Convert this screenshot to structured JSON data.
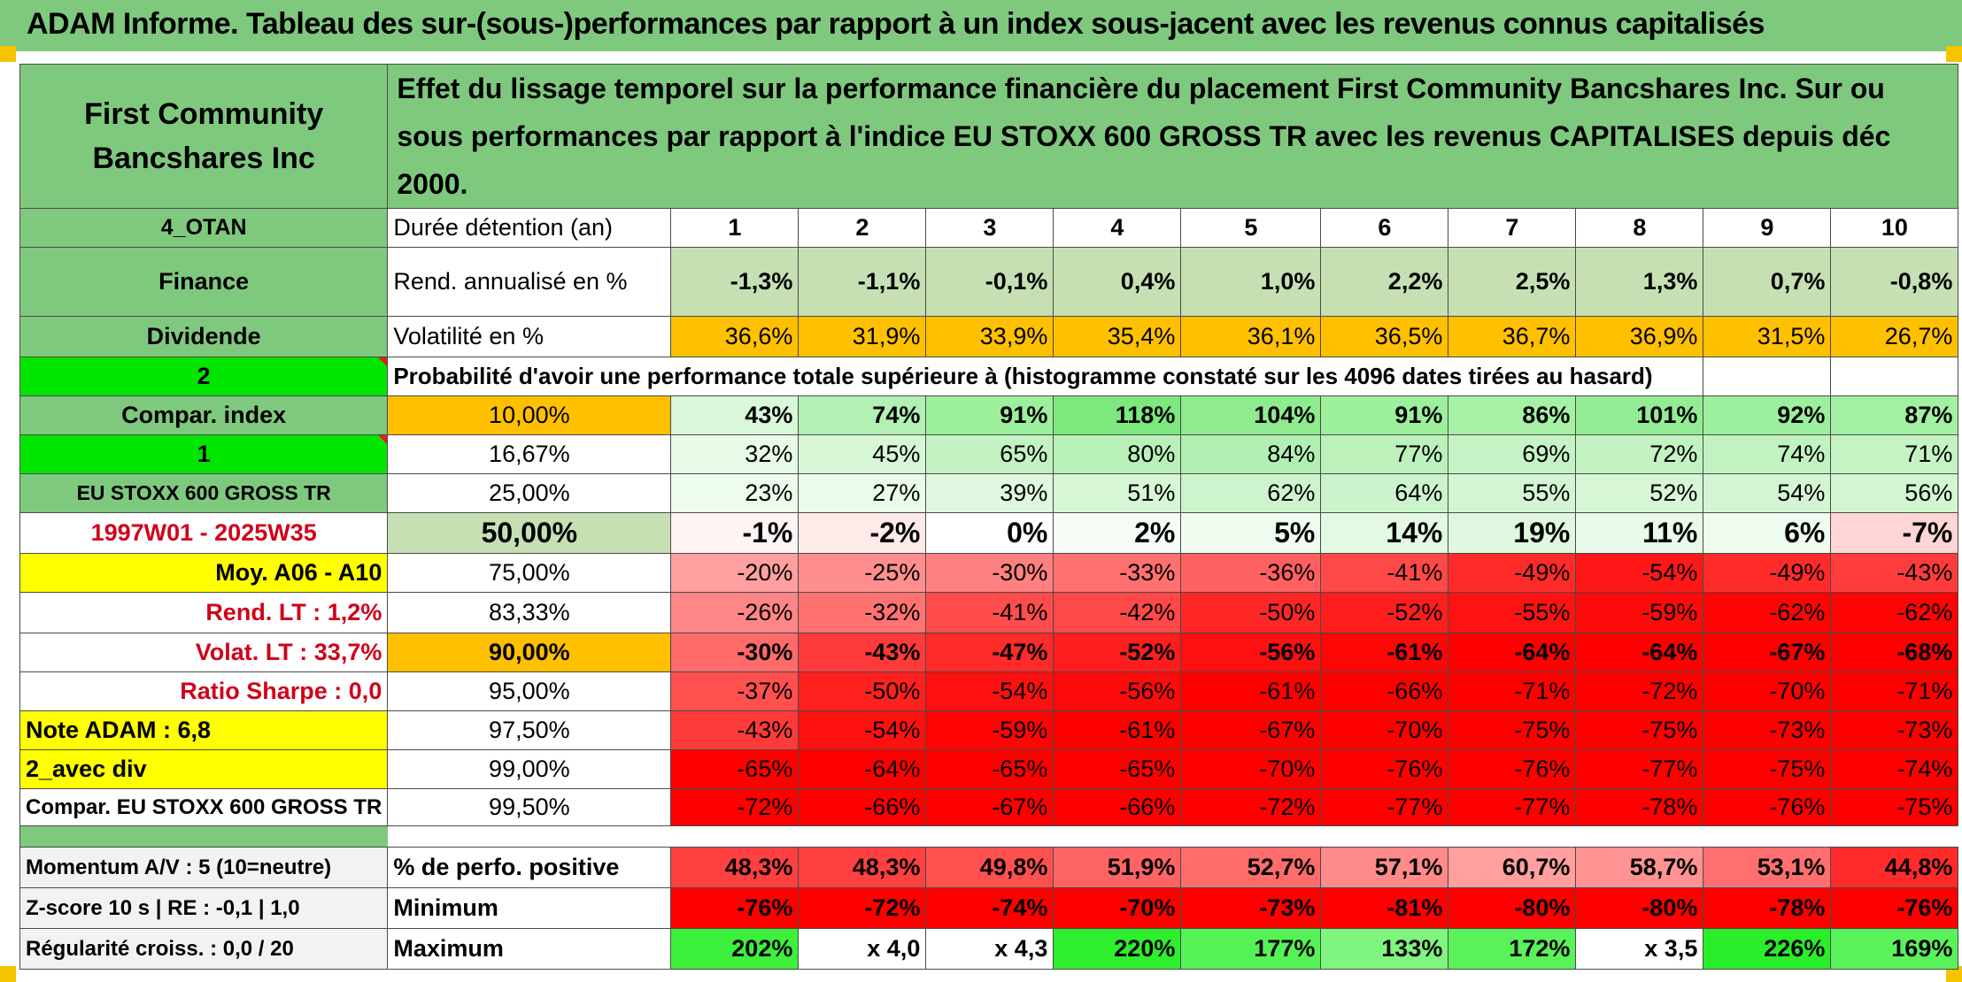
{
  "title": "ADAM Informe. Tableau des sur-(sous-)performances par rapport à un index sous-jacent avec les revenus connus capitalisés",
  "header": {
    "company": "First Community Bancshares Inc",
    "description": "Effet du lissage temporel sur la performance financière du placement First Community Bancshares Inc. Sur ou sous performances par rapport à l'indice EU STOXX 600 GROSS TR avec les revenus CAPITALISES depuis déc 2000."
  },
  "left_labels": {
    "code": "4_OTAN",
    "sector": "Finance",
    "type": "Dividende",
    "value2": "2",
    "compar_index": "Compar. index",
    "value1": "1",
    "index_name": "EU STOXX 600 GROSS TR",
    "period": "1997W01 - 2025W35",
    "moy": "Moy. A06 - A10",
    "rend_lt": "Rend. LT :   1,2%",
    "volat_lt": "Volat. LT :   33,7%",
    "sharpe": "Ratio Sharpe :    0,0",
    "note": "Note ADAM : 6,8",
    "avec_div": "2_avec div",
    "compar_full": "Compar. EU STOXX 600 GROSS TR",
    "momentum": "Momentum A/V : 5 (10=neutre)",
    "zscore": "Z-score 10 s | RE : -0,1 | 1,0",
    "regularite": "Régularité croiss. : 0,0 / 20"
  },
  "row_labels": {
    "duree": "Durée détention (an)",
    "rend": "Rend. annualisé en %",
    "volat": "Volatilité en %",
    "proba": "Probabilité d'avoir une performance totale supérieure à (histogramme constaté sur les 4096 dates tirées au hasard)",
    "positive": "% de perfo. positive",
    "minimum": "Minimum",
    "maximum": "Maximum"
  },
  "years": [
    "1",
    "2",
    "3",
    "4",
    "5",
    "6",
    "7",
    "8",
    "9",
    "10"
  ],
  "rend": [
    "-1,3%",
    "-1,1%",
    "-0,1%",
    "0,4%",
    "1,0%",
    "2,2%",
    "2,5%",
    "1,3%",
    "0,7%",
    "-0,8%"
  ],
  "volat": [
    "36,6%",
    "31,9%",
    "33,9%",
    "35,4%",
    "36,1%",
    "36,5%",
    "36,7%",
    "36,9%",
    "31,5%",
    "26,7%"
  ],
  "percentiles": [
    {
      "p": "10,00%",
      "vals": [
        "43%",
        "74%",
        "91%",
        "118%",
        "104%",
        "91%",
        "86%",
        "101%",
        "92%",
        "87%"
      ]
    },
    {
      "p": "16,67%",
      "vals": [
        "32%",
        "45%",
        "65%",
        "80%",
        "84%",
        "77%",
        "69%",
        "72%",
        "74%",
        "71%"
      ]
    },
    {
      "p": "25,00%",
      "vals": [
        "23%",
        "27%",
        "39%",
        "51%",
        "62%",
        "64%",
        "55%",
        "52%",
        "54%",
        "56%"
      ]
    },
    {
      "p": "50,00%",
      "vals": [
        "-1%",
        "-2%",
        "0%",
        "2%",
        "5%",
        "14%",
        "19%",
        "11%",
        "6%",
        "-7%"
      ]
    },
    {
      "p": "75,00%",
      "vals": [
        "-20%",
        "-25%",
        "-30%",
        "-33%",
        "-36%",
        "-41%",
        "-49%",
        "-54%",
        "-49%",
        "-43%"
      ]
    },
    {
      "p": "83,33%",
      "vals": [
        "-26%",
        "-32%",
        "-41%",
        "-42%",
        "-50%",
        "-52%",
        "-55%",
        "-59%",
        "-62%",
        "-62%"
      ]
    },
    {
      "p": "90,00%",
      "vals": [
        "-30%",
        "-43%",
        "-47%",
        "-52%",
        "-56%",
        "-61%",
        "-64%",
        "-64%",
        "-67%",
        "-68%"
      ]
    },
    {
      "p": "95,00%",
      "vals": [
        "-37%",
        "-50%",
        "-54%",
        "-56%",
        "-61%",
        "-66%",
        "-71%",
        "-72%",
        "-70%",
        "-71%"
      ]
    },
    {
      "p": "97,50%",
      "vals": [
        "-43%",
        "-54%",
        "-59%",
        "-61%",
        "-67%",
        "-70%",
        "-75%",
        "-75%",
        "-73%",
        "-73%"
      ]
    },
    {
      "p": "99,00%",
      "vals": [
        "-65%",
        "-64%",
        "-65%",
        "-65%",
        "-70%",
        "-76%",
        "-76%",
        "-77%",
        "-75%",
        "-74%"
      ]
    },
    {
      "p": "99,50%",
      "vals": [
        "-72%",
        "-66%",
        "-67%",
        "-66%",
        "-72%",
        "-77%",
        "-77%",
        "-78%",
        "-76%",
        "-75%"
      ]
    }
  ],
  "positive": [
    "48,3%",
    "48,3%",
    "49,8%",
    "51,9%",
    "52,7%",
    "57,1%",
    "60,7%",
    "58,7%",
    "53,1%",
    "44,8%"
  ],
  "minimum": [
    "-76%",
    "-72%",
    "-74%",
    "-70%",
    "-73%",
    "-81%",
    "-80%",
    "-80%",
    "-78%",
    "-76%"
  ],
  "maximum": [
    "202%",
    "x 4,0",
    "x 4,3",
    "220%",
    "177%",
    "133%",
    "172%",
    "x 3,5",
    "226%",
    "169%"
  ],
  "colors": {
    "header_green": "#7fc97f",
    "bright_green": "#00e600",
    "orange": "#ffc000",
    "yellow": "#ffff00",
    "label_red": "#d0021b",
    "cell_colors": {
      "p0": [
        "#d9f7d9",
        "#b3f0b3",
        "#9cf09c",
        "#7de87d",
        "#8eec8e",
        "#9cf09c",
        "#a6f1a6",
        "#93ec93",
        "#9cef9c",
        "#a2f0a2"
      ],
      "p1": [
        "#e8fbe8",
        "#d6f6d6",
        "#c3f2c3",
        "#b8f0b8",
        "#b2efb2",
        "#bcf1bc",
        "#c6f3c6",
        "#c3f2c3",
        "#c1f2c1",
        "#c4f3c4"
      ],
      "p2": [
        "#eefcee",
        "#ebfbeb",
        "#dff8df",
        "#d6f6d6",
        "#cdf4cd",
        "#ccf4cc",
        "#d3f5d3",
        "#d6f6d6",
        "#d4f5d4",
        "#d2f5d2"
      ],
      "p3": [
        "#fff4f4",
        "#ffeaea",
        "#ffffff",
        "#f6fdf6",
        "#f0fcf0",
        "#e4f9e4",
        "#dff8df",
        "#e9faea",
        "#effcef",
        "#ffd5d5"
      ],
      "p4": [
        "#ff9f9f",
        "#ff8f8f",
        "#ff8080",
        "#ff7070",
        "#ff6060",
        "#ff4848",
        "#ff2a2a",
        "#ff1818",
        "#ff2a2a",
        "#ff3c3c"
      ],
      "p5": [
        "#ff8686",
        "#ff7272",
        "#ff4c4c",
        "#ff4848",
        "#ff2626",
        "#ff1e1e",
        "#ff1212",
        "#ff0a0a",
        "#ff0404",
        "#ff0404"
      ],
      "p6": [
        "#ff6a6a",
        "#ff3a3a",
        "#ff2a2a",
        "#ff1e1e",
        "#ff1010",
        "#ff0606",
        "#ff0000",
        "#ff0000",
        "#ff0000",
        "#ff0000"
      ],
      "p7": [
        "#ff5050",
        "#ff2020",
        "#ff1010",
        "#ff0a0a",
        "#ff0000",
        "#ff0000",
        "#ff0000",
        "#ff0000",
        "#ff0000",
        "#ff0000"
      ],
      "p8": [
        "#ff3a3a",
        "#ff1010",
        "#ff0404",
        "#ff0000",
        "#ff0000",
        "#ff0000",
        "#ff0000",
        "#ff0000",
        "#ff0000",
        "#ff0000"
      ],
      "p9": [
        "#ff0000",
        "#ff0000",
        "#ff0000",
        "#ff0000",
        "#ff0000",
        "#ff0000",
        "#ff0000",
        "#ff0000",
        "#ff0000",
        "#ff0000"
      ],
      "p10": [
        "#ff0000",
        "#ff0000",
        "#ff0000",
        "#ff0000",
        "#ff0000",
        "#ff0000",
        "#ff0000",
        "#ff0000",
        "#ff0000",
        "#ff0000"
      ],
      "positive": [
        "#ff4040",
        "#ff4040",
        "#ff5050",
        "#ff6464",
        "#ff6c6c",
        "#ff8a8a",
        "#ff9f9f",
        "#ff9393",
        "#ff6f6f",
        "#ff2a2a"
      ],
      "minimum": [
        "#ff0000",
        "#ff0000",
        "#ff0000",
        "#ff0000",
        "#ff0000",
        "#ff0000",
        "#ff0000",
        "#ff0000",
        "#ff0000",
        "#ff0000"
      ],
      "maximum": [
        "#3cf03c",
        "#ffffff",
        "#ffffff",
        "#2eee2e",
        "#55f255",
        "#7ff57f",
        "#5af25a",
        "#ffffff",
        "#2aee2a",
        "#5af25a"
      ]
    }
  }
}
